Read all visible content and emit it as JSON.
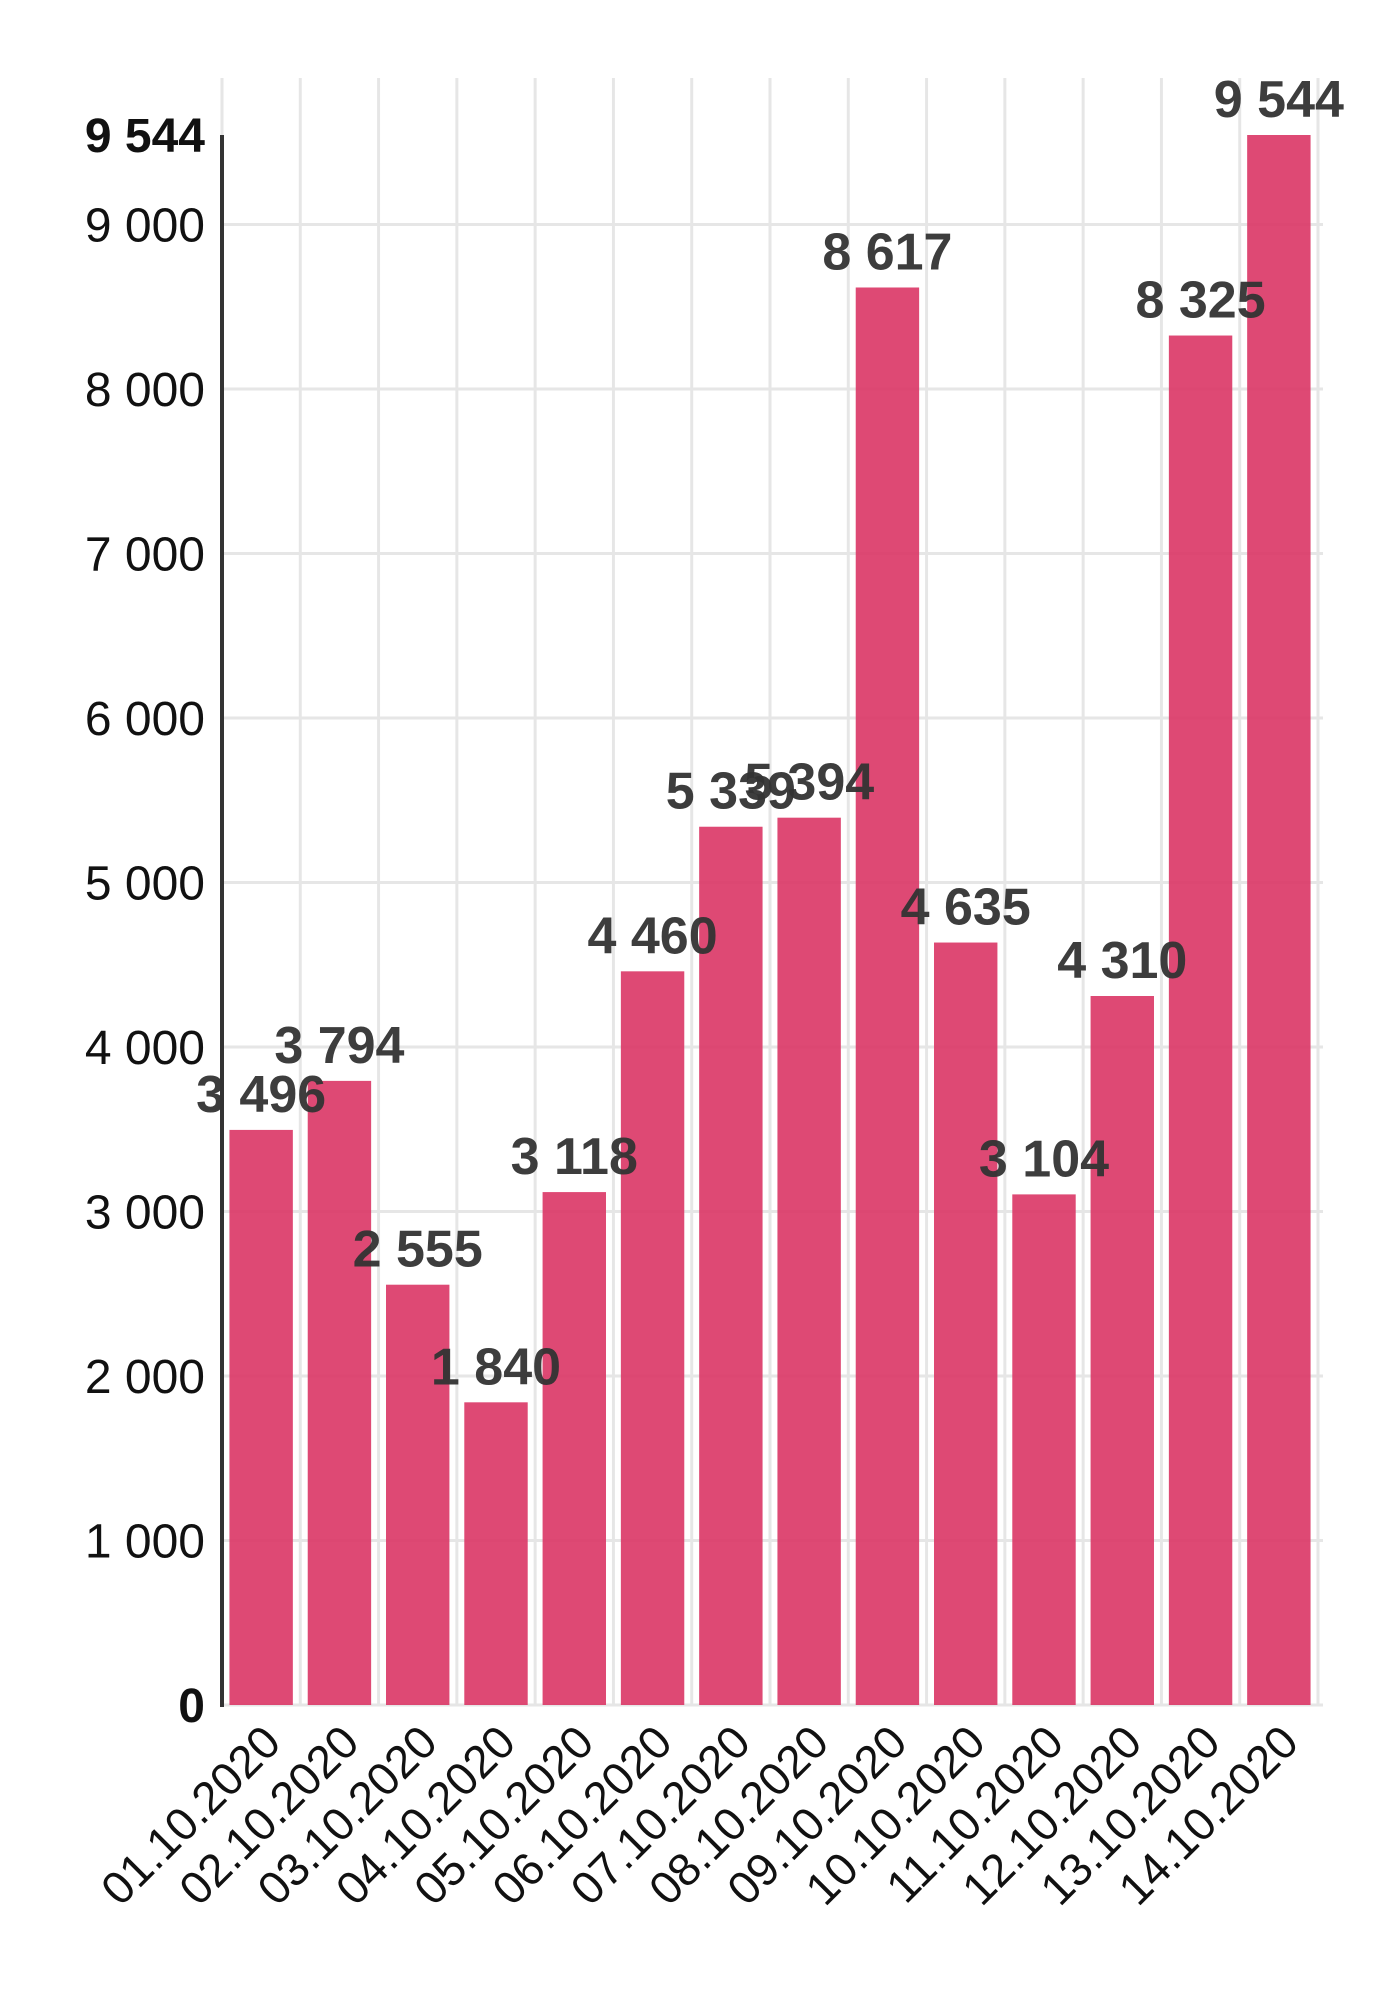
{
  "chart_data": {
    "type": "bar",
    "categories": [
      "01.10.2020",
      "02.10.2020",
      "03.10.2020",
      "04.10.2020",
      "05.10.2020",
      "06.10.2020",
      "07.10.2020",
      "08.10.2020",
      "09.10.2020",
      "10.10.2020",
      "11.10.2020",
      "12.10.2020",
      "13.10.2020",
      "14.10.2020"
    ],
    "values": [
      3496,
      3794,
      2555,
      1840,
      3118,
      4460,
      5339,
      5394,
      8617,
      4635,
      3104,
      4310,
      8325,
      9544
    ],
    "value_labels": [
      "3 496",
      "3 794",
      "2 555",
      "1 840",
      "3 118",
      "4 460",
      "5 339",
      "5 394",
      "8 617",
      "4 635",
      "3 104",
      "4 310",
      "8 325",
      "9 544"
    ],
    "yticks": [
      {
        "value": 0,
        "label": "0",
        "bold": true
      },
      {
        "value": 1000,
        "label": "1 000",
        "bold": false
      },
      {
        "value": 2000,
        "label": "2 000",
        "bold": false
      },
      {
        "value": 3000,
        "label": "3 000",
        "bold": false
      },
      {
        "value": 4000,
        "label": "4 000",
        "bold": false
      },
      {
        "value": 5000,
        "label": "5 000",
        "bold": false
      },
      {
        "value": 6000,
        "label": "6 000",
        "bold": false
      },
      {
        "value": 7000,
        "label": "7 000",
        "bold": false
      },
      {
        "value": 8000,
        "label": "8 000",
        "bold": false
      },
      {
        "value": 9000,
        "label": "9 000",
        "bold": false
      },
      {
        "value": 9544,
        "label": "9 544",
        "bold": true
      }
    ],
    "ylim": [
      0,
      9544
    ],
    "title": "",
    "xlabel": "",
    "ylabel": "",
    "grid": true,
    "bar_color": "#db3a68"
  }
}
